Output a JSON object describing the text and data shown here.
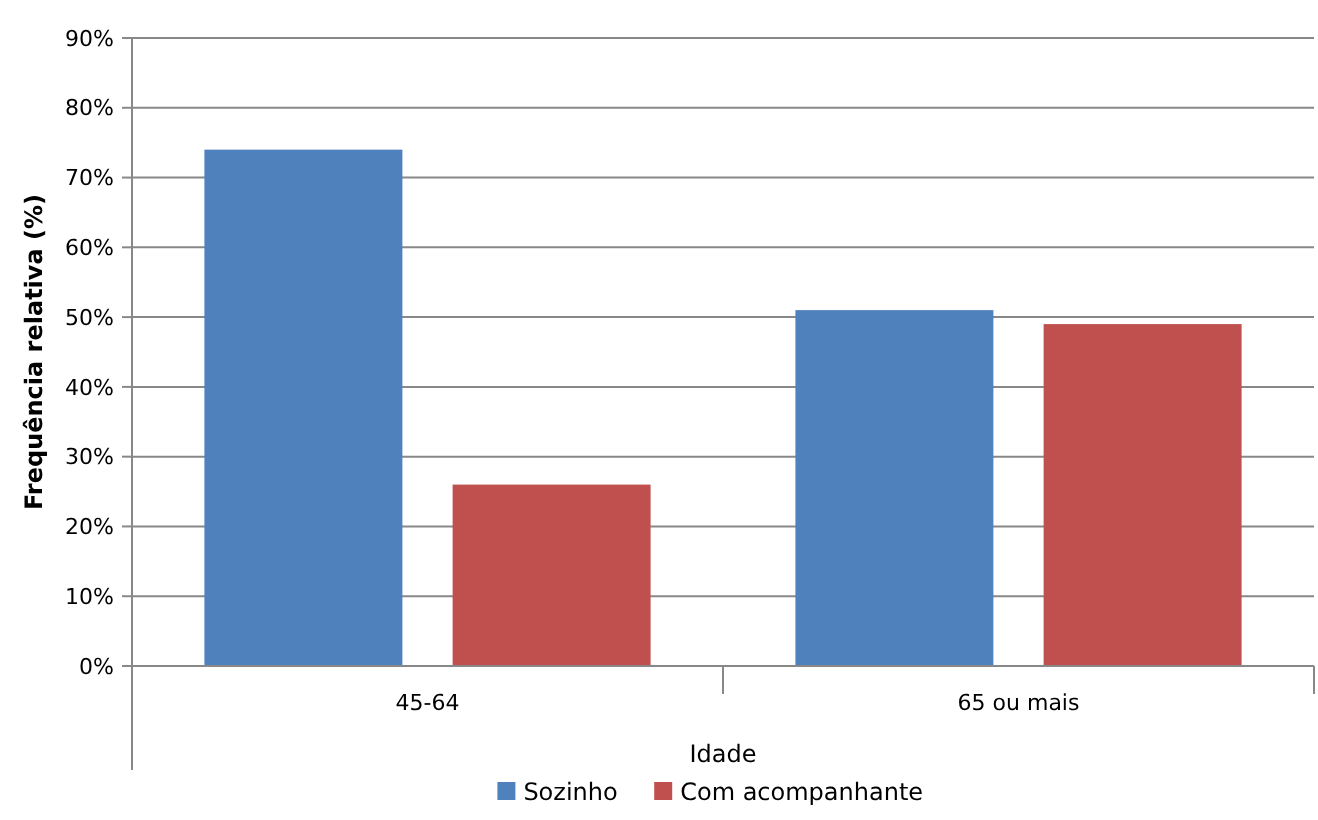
{
  "chart_data": {
    "type": "bar",
    "xlabel": "Idade",
    "ylabel": "Frequência relativa (%)",
    "categories": [
      "45-64",
      "65 ou mais"
    ],
    "series": [
      {
        "name": "Sozinho",
        "color": "#4f81bd",
        "values": [
          74,
          51
        ]
      },
      {
        "name": "Com acompanhante",
        "color": "#c0504d",
        "values": [
          26,
          49
        ]
      }
    ],
    "ylim": [
      0,
      90
    ],
    "yticks": [
      {
        "value": 0,
        "label": "0%"
      },
      {
        "value": 10,
        "label": "10%"
      },
      {
        "value": 20,
        "label": "20%"
      },
      {
        "value": 30,
        "label": "30%"
      },
      {
        "value": 40,
        "label": "40%"
      },
      {
        "value": 50,
        "label": "50%"
      },
      {
        "value": 60,
        "label": "60%"
      },
      {
        "value": 70,
        "label": "70%"
      },
      {
        "value": 80,
        "label": "80%"
      },
      {
        "value": 90,
        "label": "90%"
      }
    ],
    "grid": "y",
    "legend": "bottom"
  }
}
